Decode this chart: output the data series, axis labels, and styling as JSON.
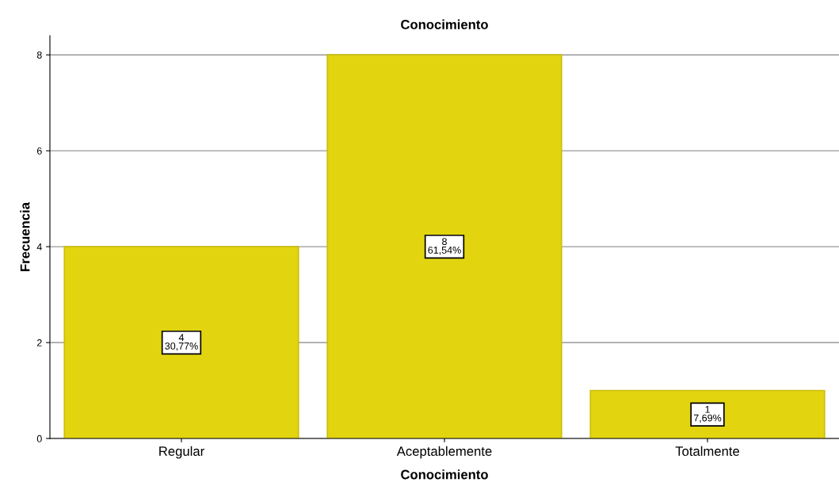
{
  "chart_data": {
    "type": "bar",
    "title": "Conocimiento",
    "xlabel": "Conocimiento",
    "ylabel": "Frecuencia",
    "categories": [
      "Regular",
      "Aceptablemente",
      "Totalmente"
    ],
    "values": [
      4,
      8,
      1
    ],
    "color": "#e2d510",
    "value_labels": [
      "4\n30,77%",
      "8\n61,54%",
      "1\n7,69%"
    ],
    "ylim": [
      0,
      8.4
    ],
    "yticks": [
      0,
      2,
      4,
      6,
      8
    ],
    "grid": "y",
    "legend": false
  }
}
